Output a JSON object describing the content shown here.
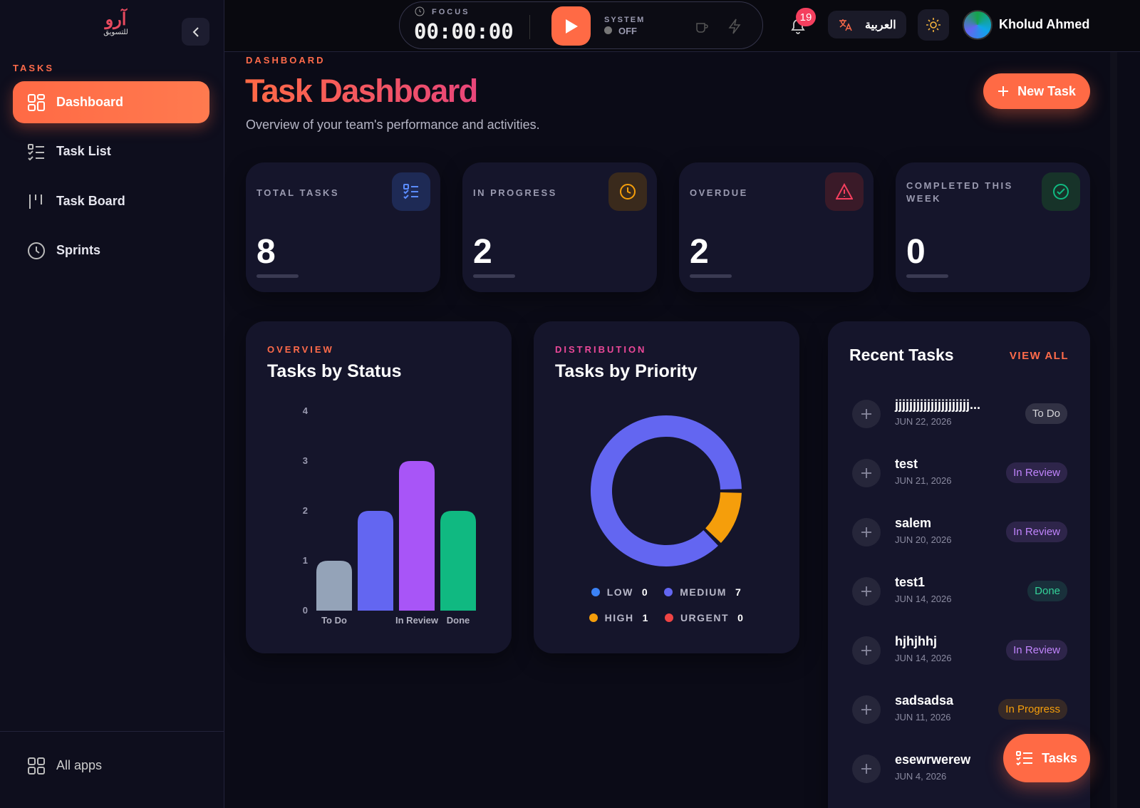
{
  "logo": {
    "main": "آرو",
    "sub": "للتسويق"
  },
  "sidebar": {
    "section": "TASKS",
    "nav": [
      "Dashboard",
      "Task List",
      "Task Board",
      "Sprints"
    ],
    "footer": "All apps"
  },
  "topbar": {
    "focus_label": "FOCUS",
    "timer": "00:00:00",
    "system_label": "SYSTEM",
    "system_status": "OFF",
    "notifications": 19,
    "language": "العربية",
    "user": "Kholud Ahmed"
  },
  "header": {
    "eyebrow": "DASHBOARD",
    "title": "Task Dashboard",
    "subtitle": "Overview of your team's performance and activities.",
    "button": "New Task"
  },
  "stats": [
    {
      "label": "TOTAL TASKS",
      "value": 8
    },
    {
      "label": "IN PROGRESS",
      "value": 2
    },
    {
      "label": "OVERDUE",
      "value": 2
    },
    {
      "label": "COMPLETED THIS WEEK",
      "value": 0
    }
  ],
  "chart_data": [
    {
      "type": "bar",
      "eyebrow": "OVERVIEW",
      "title": "Tasks by Status",
      "categories": [
        "To Do",
        null,
        "In Review",
        "Done"
      ],
      "values": [
        1,
        2,
        3,
        2
      ],
      "colors": [
        "#94a3b8",
        "#6366f1",
        "#a855f7",
        "#10b981"
      ],
      "ylim": [
        0,
        4
      ],
      "yticks": [
        0,
        1,
        2,
        3,
        4
      ],
      "grid": false
    },
    {
      "type": "pie",
      "eyebrow": "DISTRIBUTION",
      "title": "Tasks by Priority",
      "categories": [
        "LOW",
        "MEDIUM",
        "HIGH",
        "URGENT"
      ],
      "values": [
        0,
        7,
        1,
        0
      ],
      "colors": [
        "#3b82f6",
        "#6366f1",
        "#f59e0b",
        "#ef4444"
      ]
    }
  ],
  "recent": {
    "title": "Recent Tasks",
    "link": "VIEW ALL",
    "tasks": [
      {
        "name": "jjjjjjjjjjjjjjjjjjjjj...",
        "date": "JUN 22, 2026",
        "status": "To Do",
        "color": "#d4d4d8"
      },
      {
        "name": "test",
        "date": "JUN 21, 2026",
        "status": "In Review",
        "color": "#c084fc"
      },
      {
        "name": "salem",
        "date": "JUN 20, 2026",
        "status": "In Review",
        "color": "#c084fc"
      },
      {
        "name": "test1",
        "date": "JUN 14, 2026",
        "status": "Done",
        "color": "#34d399"
      },
      {
        "name": "hjhjhhj",
        "date": "JUN 14, 2026",
        "status": "In Review",
        "color": "#c084fc"
      },
      {
        "name": "sadsadsa",
        "date": "JUN 11, 2026",
        "status": "In Progress",
        "color": "#f59e0b"
      },
      {
        "name": "esewrwerew",
        "date": "JUN 4, 2026",
        "status": null,
        "color": null
      }
    ]
  },
  "fab": "Tasks"
}
